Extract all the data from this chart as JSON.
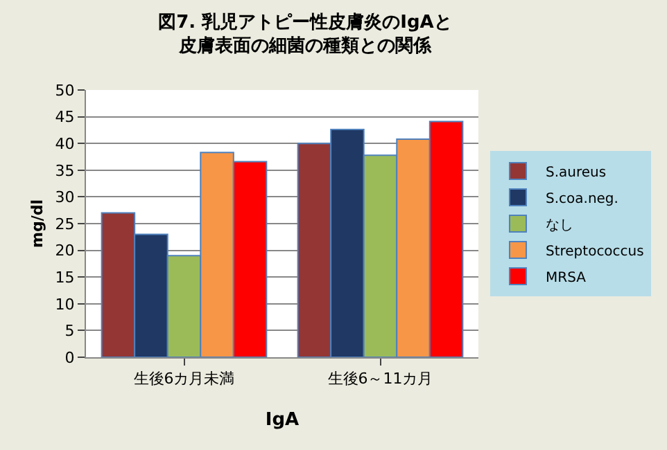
{
  "chart_data": {
    "type": "bar",
    "title": "図7. 乳児アトピー性皮膚炎のIgAと皮膚表面の細菌の種類との関係",
    "xlabel": "IgA",
    "ylabel": "mg/dl",
    "categories": [
      "生後6カ月未満",
      "生後6～11カ月"
    ],
    "series": [
      {
        "name": "S.aureus",
        "color": "#943634",
        "values": [
          27,
          40
        ]
      },
      {
        "name": "S.coa.neg.",
        "color": "#1f3864",
        "values": [
          23,
          42.6
        ]
      },
      {
        "name": "なし",
        "color": "#9bbb59",
        "values": [
          19,
          37.8
        ]
      },
      {
        "name": "Streptococcus",
        "color": "#f79646",
        "values": [
          38.3,
          40.8
        ]
      },
      {
        "name": "MRSA",
        "color": "#ff0000",
        "values": [
          36.6,
          44.1
        ]
      }
    ],
    "ylim": [
      0,
      50
    ],
    "yticks": [
      0,
      5,
      10,
      15,
      20,
      25,
      30,
      35,
      40,
      45,
      50
    ],
    "grid": "y",
    "legend": "right"
  }
}
